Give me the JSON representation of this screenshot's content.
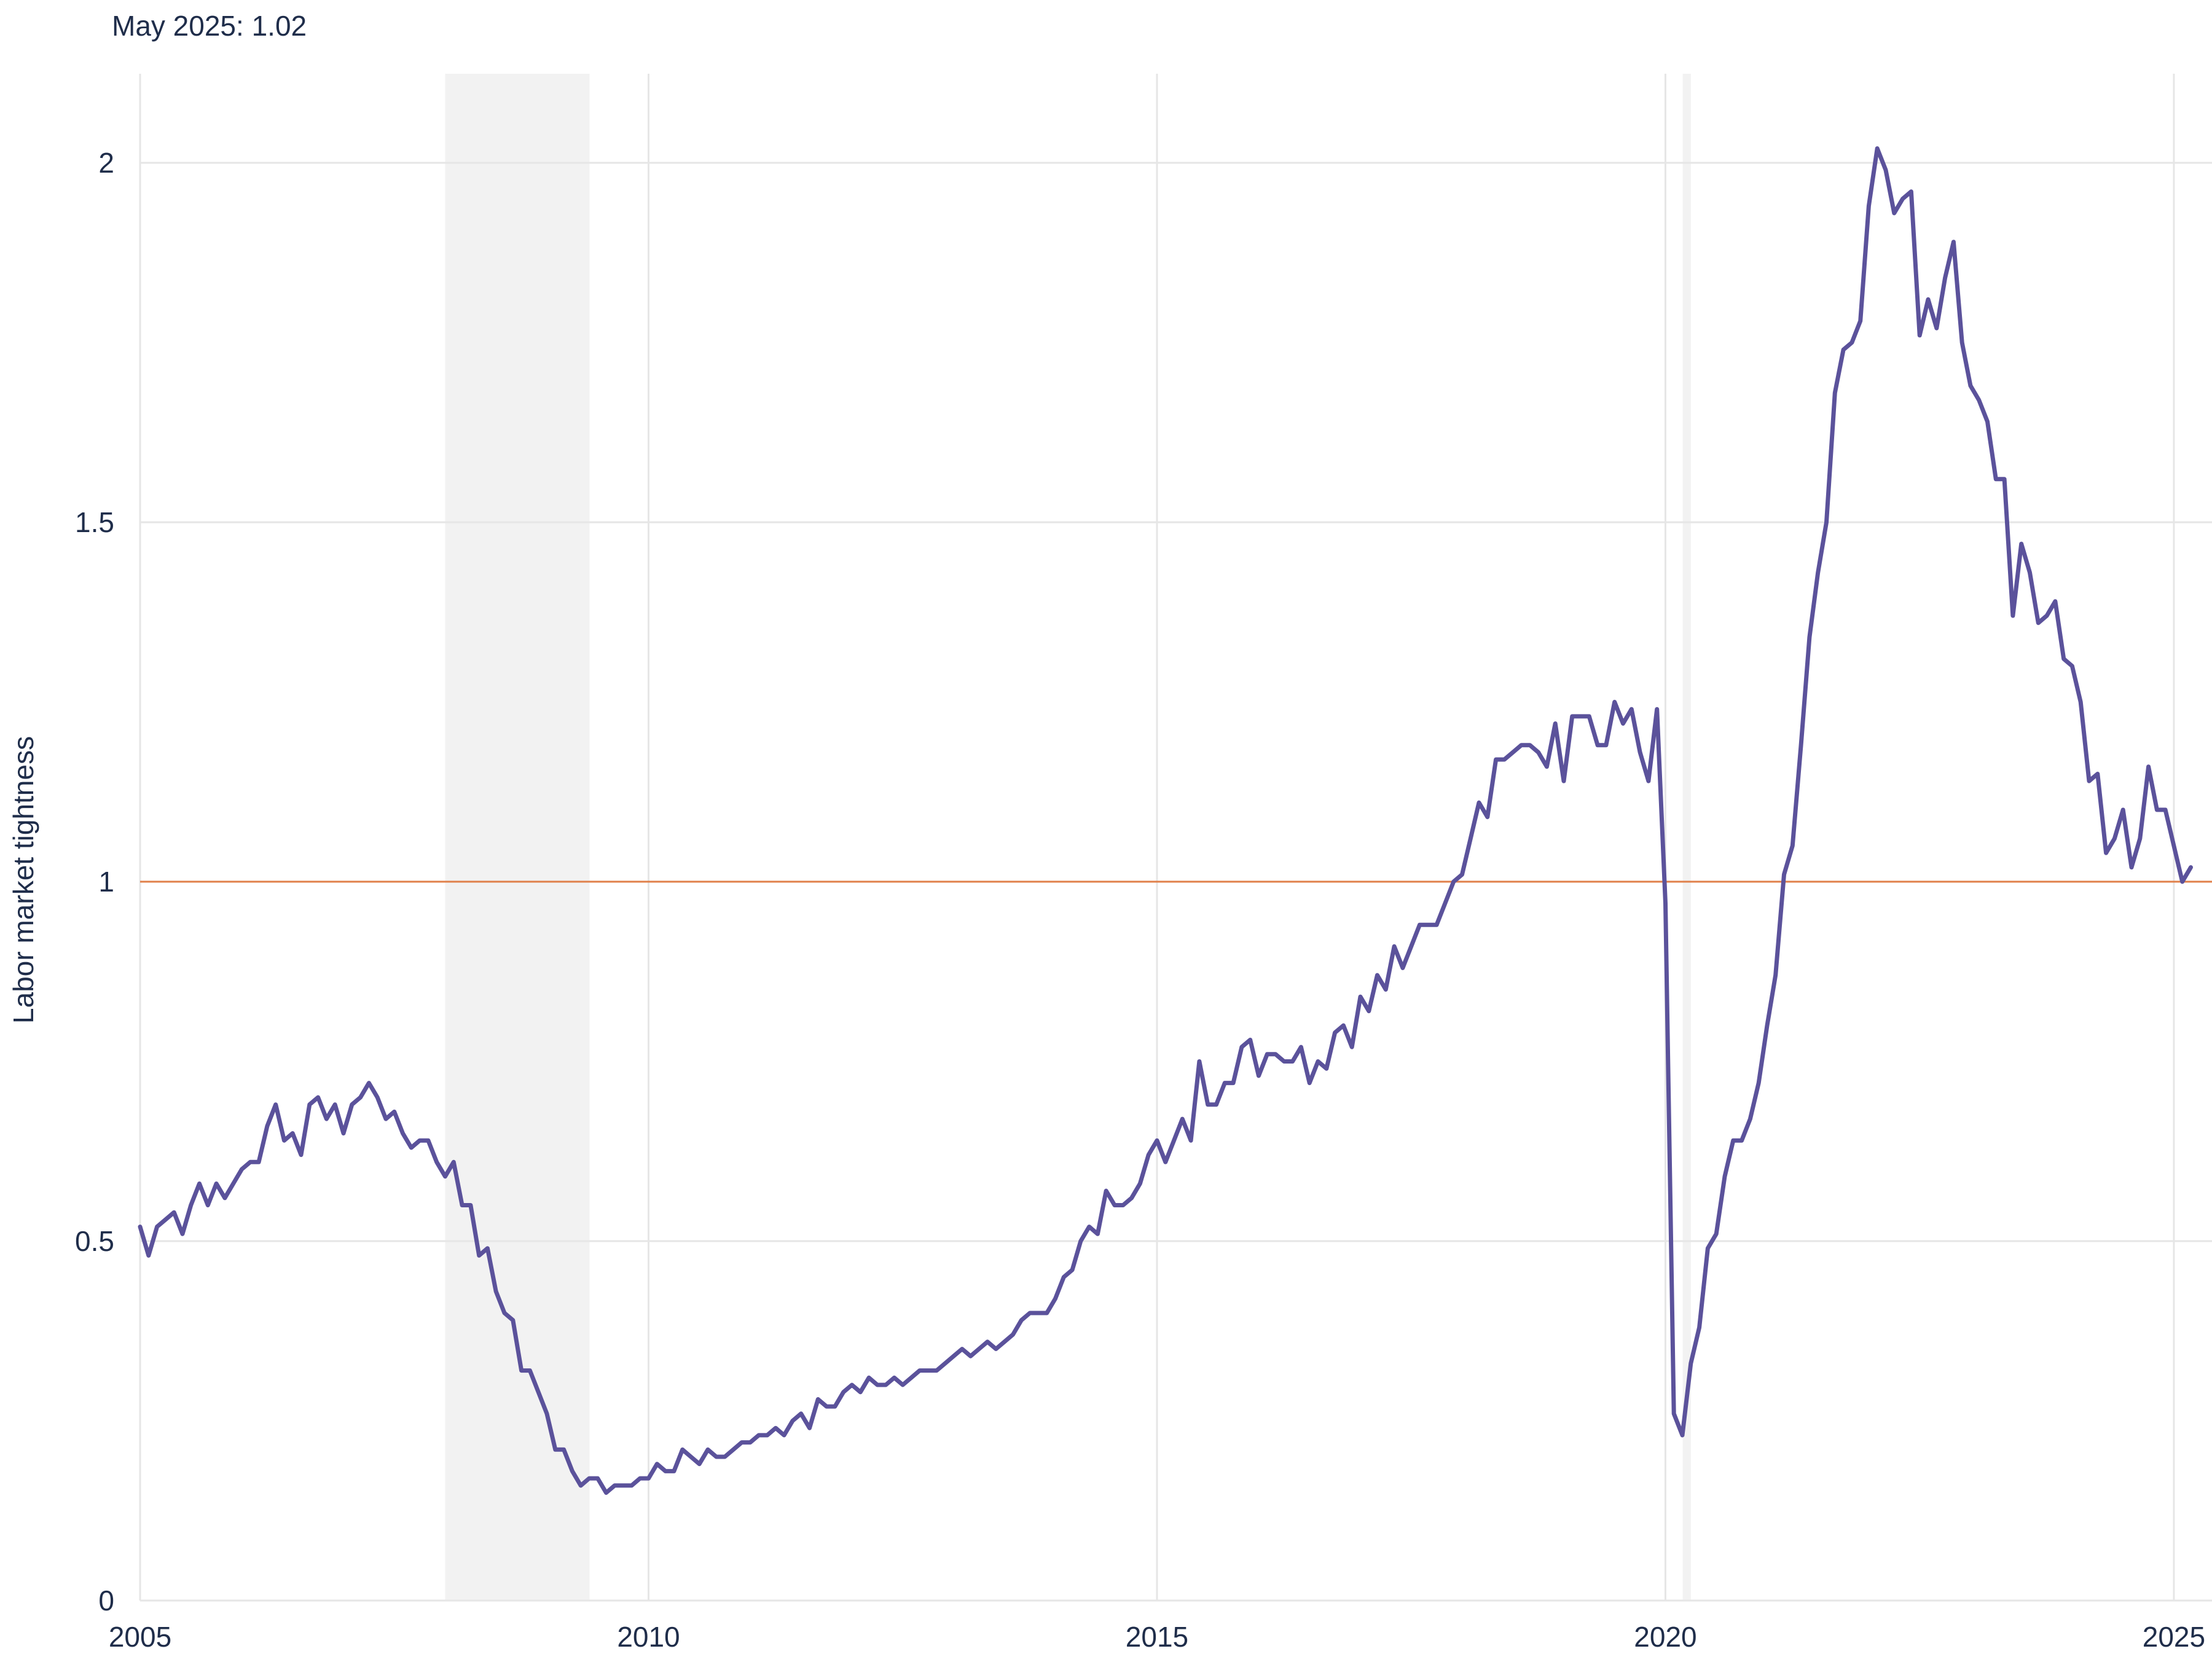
{
  "colors": {
    "line": "#5b529b",
    "reference": "#e0804a",
    "grid": "#e6e6e6",
    "recession": "#f2f2f2",
    "text": "#1f2d4a"
  },
  "chart_data": {
    "type": "line",
    "title": "",
    "subtitle": "May 2025: 1.02",
    "xlabel": "",
    "ylabel": "Labor market tightness",
    "xlim": [
      2005.0,
      2025.375
    ],
    "ylim": [
      0,
      2.12
    ],
    "x_ticks": [
      2005,
      2010,
      2015,
      2020,
      2025
    ],
    "x_tick_labels": [
      "2005",
      "2010",
      "2015",
      "2020",
      "2025"
    ],
    "y_ticks": [
      0,
      0.5,
      1,
      1.5,
      2
    ],
    "y_tick_labels": [
      "0",
      "0.5",
      "1",
      "1.5",
      "2"
    ],
    "grid": true,
    "reference_line": {
      "y": 1
    },
    "recessions": [
      {
        "start": 2008.0,
        "end": 2009.42
      },
      {
        "start": 2020.17,
        "end": 2020.25
      }
    ],
    "series": [
      {
        "start": 2005.0,
        "step": 0.08333333,
        "values": [
          0.52,
          0.48,
          0.52,
          0.53,
          0.54,
          0.51,
          0.55,
          0.58,
          0.55,
          0.58,
          0.56,
          0.58,
          0.6,
          0.61,
          0.61,
          0.66,
          0.69,
          0.64,
          0.65,
          0.62,
          0.69,
          0.7,
          0.67,
          0.69,
          0.65,
          0.69,
          0.7,
          0.72,
          0.7,
          0.67,
          0.68,
          0.65,
          0.63,
          0.64,
          0.64,
          0.61,
          0.59,
          0.61,
          0.55,
          0.55,
          0.48,
          0.49,
          0.43,
          0.4,
          0.39,
          0.32,
          0.32,
          0.29,
          0.26,
          0.21,
          0.21,
          0.18,
          0.16,
          0.17,
          0.17,
          0.15,
          0.16,
          0.16,
          0.16,
          0.17,
          0.17,
          0.19,
          0.18,
          0.18,
          0.21,
          0.2,
          0.19,
          0.21,
          0.2,
          0.2,
          0.21,
          0.22,
          0.22,
          0.23,
          0.23,
          0.24,
          0.23,
          0.25,
          0.26,
          0.24,
          0.28,
          0.27,
          0.27,
          0.29,
          0.3,
          0.29,
          0.31,
          0.3,
          0.3,
          0.31,
          0.3,
          0.31,
          0.32,
          0.32,
          0.32,
          0.33,
          0.34,
          0.35,
          0.34,
          0.35,
          0.36,
          0.35,
          0.36,
          0.37,
          0.39,
          0.4,
          0.4,
          0.4,
          0.42,
          0.45,
          0.46,
          0.5,
          0.52,
          0.51,
          0.57,
          0.55,
          0.55,
          0.56,
          0.58,
          0.62,
          0.64,
          0.61,
          0.64,
          0.67,
          0.64,
          0.75,
          0.69,
          0.69,
          0.72,
          0.72,
          0.77,
          0.78,
          0.73,
          0.76,
          0.76,
          0.75,
          0.75,
          0.77,
          0.72,
          0.75,
          0.74,
          0.79,
          0.8,
          0.77,
          0.84,
          0.82,
          0.87,
          0.85,
          0.91,
          0.88,
          0.91,
          0.94,
          0.94,
          0.94,
          0.97,
          1.0,
          1.01,
          1.06,
          1.11,
          1.09,
          1.17,
          1.17,
          1.18,
          1.19,
          1.19,
          1.18,
          1.16,
          1.22,
          1.14,
          1.23,
          1.23,
          1.23,
          1.19,
          1.19,
          1.25,
          1.22,
          1.24,
          1.18,
          1.14,
          1.24,
          0.97,
          0.26,
          0.23,
          0.33,
          0.38,
          0.49,
          0.51,
          0.59,
          0.64,
          0.64,
          0.67,
          0.72,
          0.8,
          0.87,
          1.01,
          1.05,
          1.19,
          1.34,
          1.43,
          1.5,
          1.68,
          1.74,
          1.75,
          1.78,
          1.94,
          2.02,
          1.99,
          1.93,
          1.95,
          1.96,
          1.76,
          1.81,
          1.77,
          1.84,
          1.89,
          1.75,
          1.69,
          1.67,
          1.64,
          1.56,
          1.56,
          1.37,
          1.47,
          1.43,
          1.36,
          1.37,
          1.39,
          1.31,
          1.3,
          1.25,
          1.14,
          1.15,
          1.04,
          1.06,
          1.1,
          1.02,
          1.06,
          1.16,
          1.1,
          1.1,
          1.05,
          1.0,
          1.02
        ]
      }
    ]
  }
}
